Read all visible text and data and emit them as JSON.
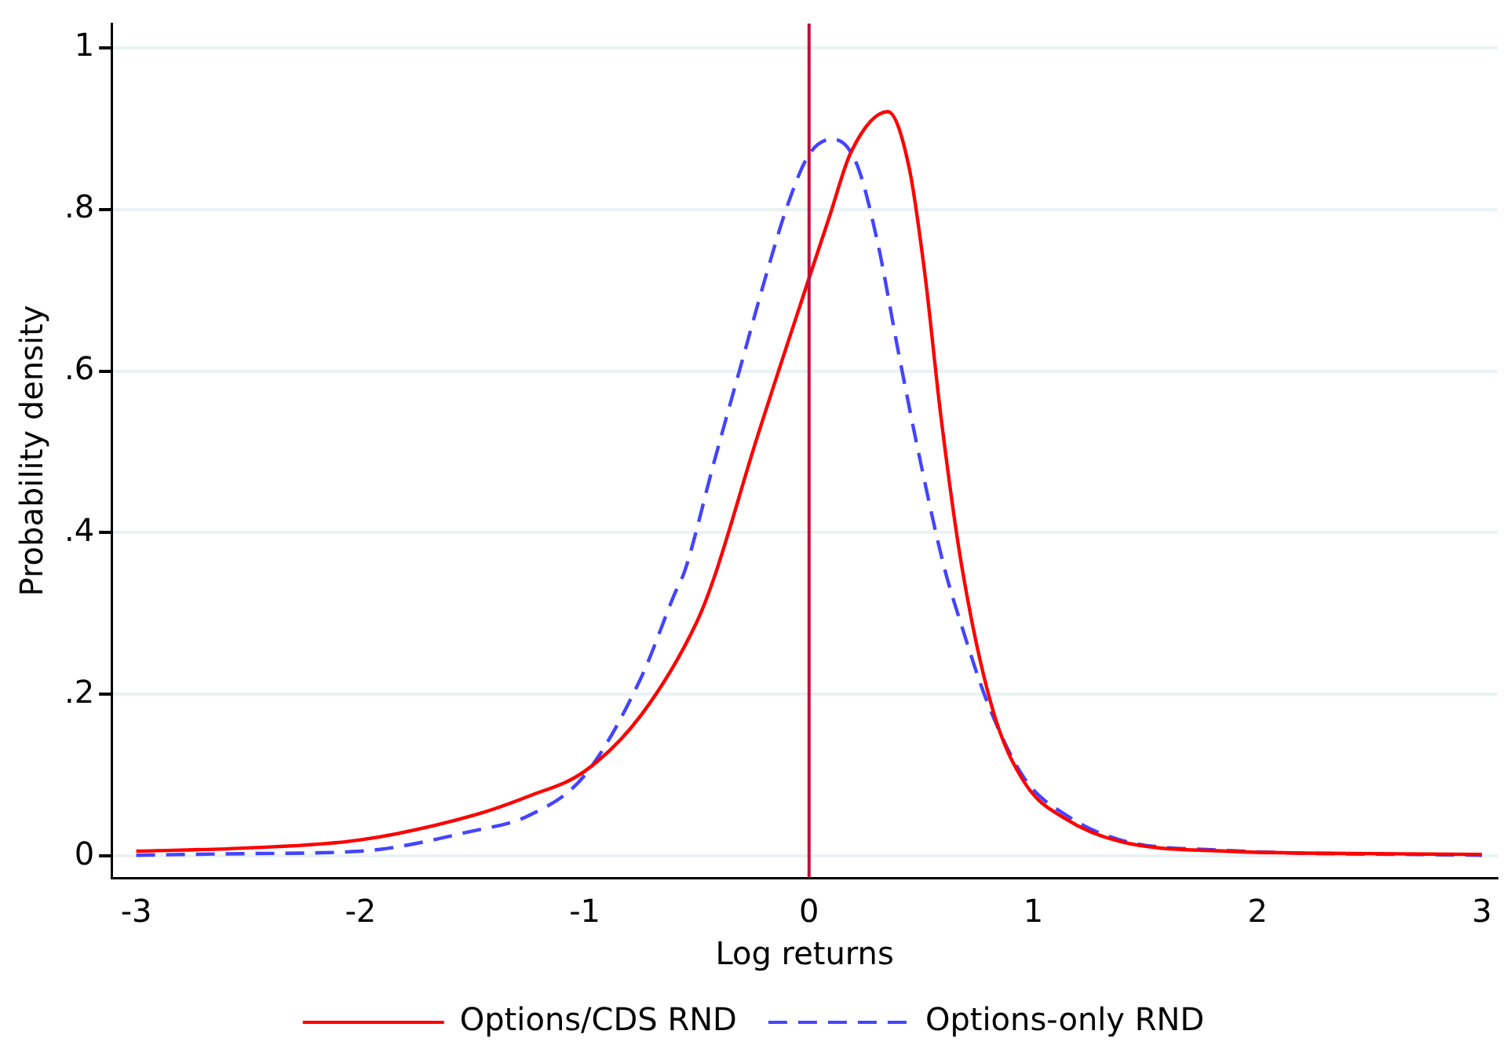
{
  "chart_data": {
    "type": "line",
    "xlabel": "Log returns",
    "ylabel": "Probability density",
    "xlim": [
      -3.11,
      3.07
    ],
    "ylim": [
      -0.027,
      1.03
    ],
    "xticks": [
      -3,
      -2,
      -1,
      0,
      1,
      2,
      3
    ],
    "yticks": [
      0,
      {
        "value": 0.2,
        "label": ".2"
      },
      {
        "value": 0.4,
        "label": ".4"
      },
      {
        "value": 0.6,
        "label": ".6"
      },
      {
        "value": 0.8,
        "label": ".8"
      },
      1
    ],
    "grid": "y",
    "legend": "bottom",
    "marker": "none",
    "ref_lines": [
      {
        "axis": "x",
        "value": 0,
        "color": "#c0103c"
      }
    ],
    "series": [
      {
        "name": "Options/CDS RND",
        "color": "#ff0000",
        "line_style": "solid",
        "x": [
          -3,
          -2.5,
          -2,
          -1.5,
          -1.25,
          -1,
          -0.75,
          -0.5,
          -0.424,
          -0.236,
          0,
          0.093,
          0.187,
          0.351,
          0.446,
          0.516,
          0.587,
          0.68,
          0.82,
          0.963,
          1.15,
          1.386,
          1.856,
          2.5,
          3
        ],
        "values": [
          0.006,
          0.01,
          0.02,
          0.05,
          0.074,
          0.105,
          0.174,
          0.29,
          0.344,
          0.514,
          0.715,
          0.793,
          0.871,
          0.921,
          0.852,
          0.721,
          0.546,
          0.36,
          0.18,
          0.09,
          0.045,
          0.018,
          0.006,
          0.003,
          0.002
        ]
      },
      {
        "name": "Options-only RND",
        "color": "#4444ff",
        "line_style": "dashed",
        "x": [
          -3,
          -2.5,
          -2,
          -1.5,
          -1.25,
          -1,
          -0.75,
          -0.6,
          -0.554,
          -0.424,
          -0.307,
          -0.189,
          -0.095,
          0,
          0.105,
          0.21,
          0.305,
          0.398,
          0.492,
          0.6,
          0.68,
          0.798,
          0.963,
          1.15,
          1.386,
          1.856,
          3
        ],
        "values": [
          0.001,
          0.003,
          0.006,
          0.031,
          0.05,
          0.1,
          0.22,
          0.324,
          0.353,
          0.487,
          0.604,
          0.721,
          0.806,
          0.868,
          0.887,
          0.858,
          0.76,
          0.624,
          0.494,
          0.36,
          0.285,
          0.188,
          0.095,
          0.05,
          0.02,
          0.007,
          0.001
        ]
      }
    ]
  }
}
